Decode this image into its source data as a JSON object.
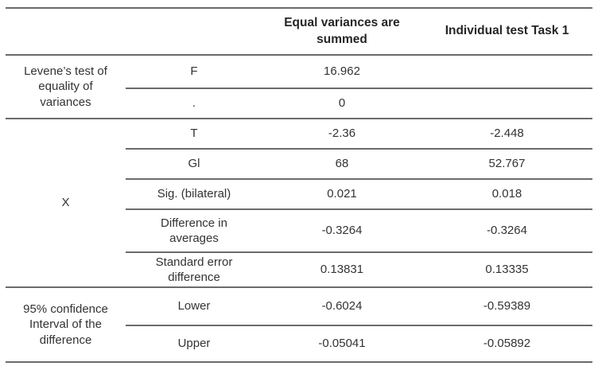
{
  "header": {
    "col1": "",
    "col2": "",
    "col3": "Equal variances are summed",
    "col4": "Individual test Task 1"
  },
  "groups": [
    {
      "label": "Levene’s test of equality of variances",
      "rows": [
        {
          "label": "F",
          "equal_variances": "16.962",
          "individual_test": ""
        },
        {
          "label": ".",
          "equal_variances": "0",
          "individual_test": ""
        }
      ]
    },
    {
      "label": "X",
      "rows": [
        {
          "label": "T",
          "equal_variances": "-2.36",
          "individual_test": "-2.448"
        },
        {
          "label": "Gl",
          "equal_variances": "68",
          "individual_test": "52.767"
        },
        {
          "label": "Sig. (bilateral)",
          "equal_variances": "0.021",
          "individual_test": "0.018"
        },
        {
          "label": "Difference in averages",
          "equal_variances": "-0.3264",
          "individual_test": "-0.3264"
        },
        {
          "label": "Standard error difference",
          "equal_variances": "0.13831",
          "individual_test": "0.13335"
        }
      ]
    },
    {
      "label": "95% confidence Interval of the difference",
      "rows": [
        {
          "label": "Lower",
          "equal_variances": "-0.6024",
          "individual_test": "-0.59389"
        },
        {
          "label": "Upper",
          "equal_variances": "-0.05041",
          "individual_test": "-0.05892"
        }
      ]
    }
  ],
  "colors": {
    "line": "#6b6b6b",
    "text": "#333333",
    "header_text": "#262626",
    "background": "#ffffff"
  }
}
